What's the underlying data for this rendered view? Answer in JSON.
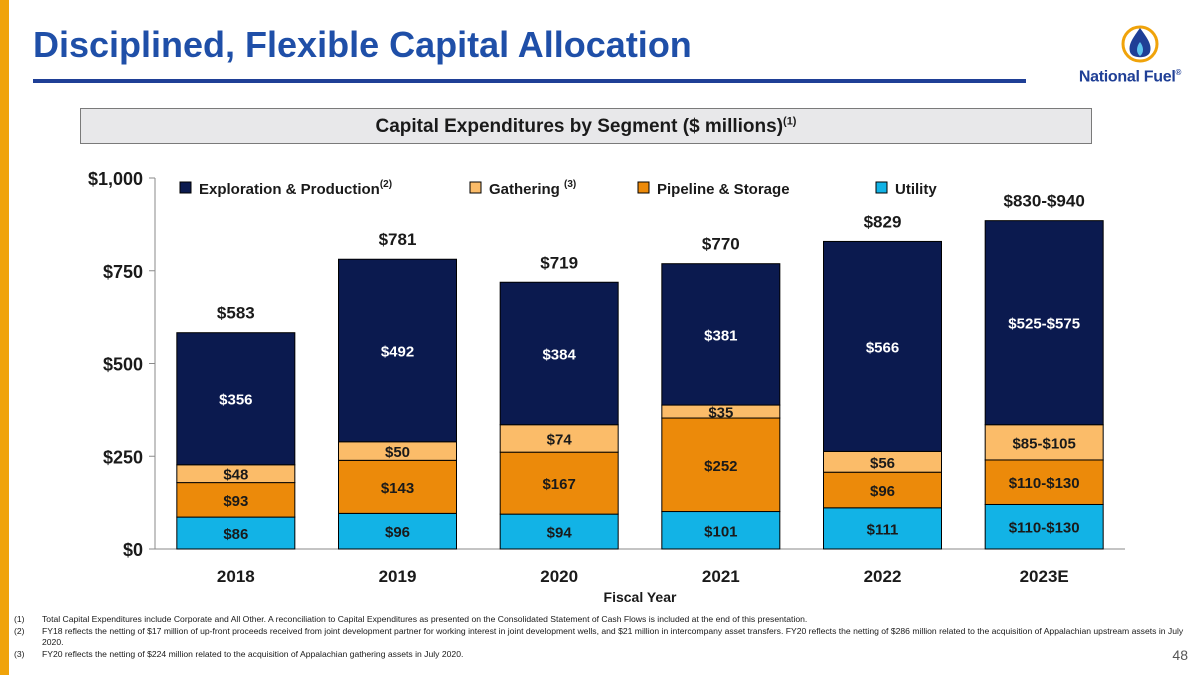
{
  "page": {
    "title": "Disciplined, Flexible Capital Allocation",
    "logo_text": "National Fuel",
    "logo_reg": "®",
    "section_title": "Capital Expenditures by Segment ($ millions)",
    "section_note": "(1)",
    "page_number": "48",
    "colors": {
      "accent_bar": "#f0a30a",
      "title": "#1f4fa8",
      "exploration_production": "#0b1a4f",
      "gathering": "#fbbc69",
      "pipeline_storage": "#ec8a0a",
      "utility": "#12b3e6"
    }
  },
  "footnotes": [
    {
      "num": "(1)",
      "text": "Total Capital Expenditures include Corporate and All Other. A reconciliation to Capital Expenditures as presented on the Consolidated Statement of Cash Flows is included at the end of this presentation."
    },
    {
      "num": "(2)",
      "text": "FY18 reflects the netting of $17 million of up-front proceeds received from joint development partner for working interest in joint development wells, and $21 million in intercompany asset transfers.  FY20 reflects the netting of $286 million related to the acquisition of Appalachian upstream assets in July 2020."
    },
    {
      "num": "(3)",
      "text": "FY20 reflects the netting of $224 million related to the acquisition of Appalachian gathering assets in July 2020."
    }
  ],
  "chart_data": {
    "type": "bar",
    "stacked": true,
    "xlabel": "Fiscal Year",
    "ylabel": "",
    "ylim": [
      0,
      1000
    ],
    "yticks": [
      0,
      250,
      500,
      750,
      1000
    ],
    "ytick_labels": [
      "$0",
      "$250",
      "$500",
      "$750",
      "$1,000"
    ],
    "grid": false,
    "legend_position": "top",
    "categories": [
      "2018",
      "2019",
      "2020",
      "2021",
      "2022",
      "2023E"
    ],
    "series": [
      {
        "name": "Utility",
        "note": "",
        "color": "#12b3e6",
        "values": [
          86,
          96,
          94,
          101,
          111,
          120
        ],
        "labels": [
          "$86",
          "$96",
          "$94",
          "$101",
          "$111",
          "$110-$130"
        ]
      },
      {
        "name": "Pipeline & Storage",
        "note": "",
        "color": "#ec8a0a",
        "values": [
          93,
          143,
          167,
          252,
          96,
          120
        ],
        "labels": [
          "$93",
          "$143",
          "$167",
          "$252",
          "$96",
          "$110-$130"
        ]
      },
      {
        "name": "Gathering ",
        "note": "(3)",
        "color": "#fbbc69",
        "values": [
          48,
          50,
          74,
          35,
          56,
          95
        ],
        "labels": [
          "$48",
          "$50",
          "$74",
          "$35",
          "$56",
          "$85-$105"
        ]
      },
      {
        "name": "Exploration & Production",
        "note": "(2)",
        "color": "#0b1a4f",
        "values": [
          356,
          492,
          384,
          381,
          566,
          550
        ],
        "labels": [
          "$356",
          "$492",
          "$384",
          "$381",
          "$566",
          "$525-$575"
        ]
      }
    ],
    "totals": [
      583,
      781,
      719,
      770,
      829,
      885
    ],
    "total_labels": [
      "$583",
      "$781",
      "$719",
      "$770",
      "$829",
      "$830-$940"
    ]
  }
}
